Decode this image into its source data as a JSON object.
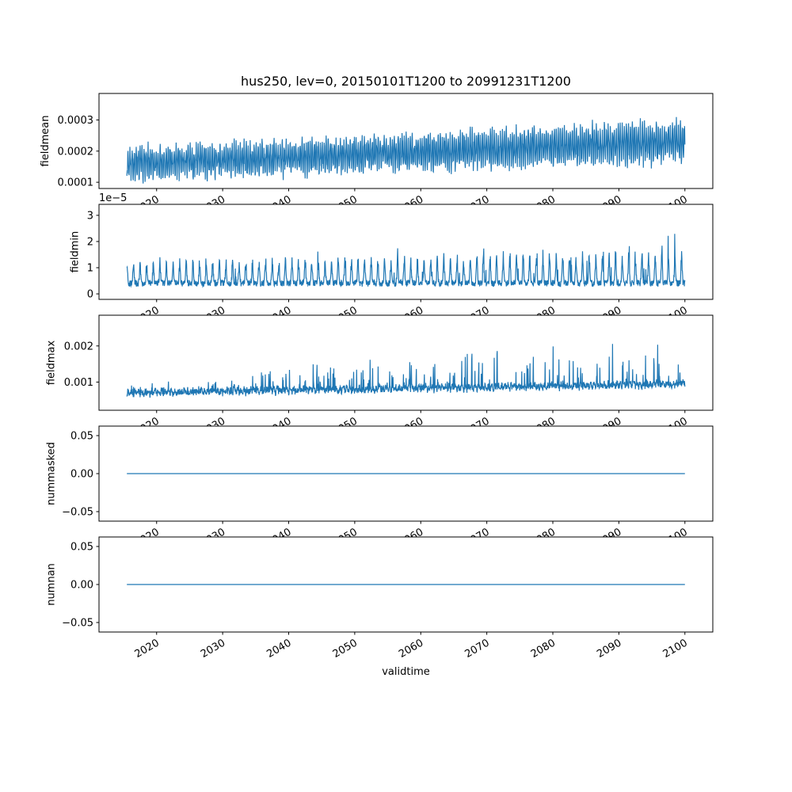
{
  "figure": {
    "background": "#ffffff",
    "line_color": "#1f77b4",
    "axes_color": "#000000",
    "text_color": "#000000"
  },
  "chart_data": {
    "type": "line",
    "title": "hus250, lev=0, 20150101T1200 to 20991231T1200",
    "xlabel": "validtime",
    "grid": false,
    "legend": "none",
    "x_range": [
      2015.5,
      2100
    ],
    "x_ticks": {
      "values": [
        2020,
        2030,
        2040,
        2050,
        2060,
        2070,
        2080,
        2090,
        2100
      ],
      "labels": [
        "2020",
        "2030",
        "2040",
        "2050",
        "2060",
        "2070",
        "2080",
        "2090",
        "2100"
      ]
    },
    "subplots": [
      {
        "ylabel": "fieldmean",
        "ylim": [
          8e-05,
          0.000385
        ],
        "yticks": {
          "values": [
            0.0001,
            0.0002,
            0.0003
          ],
          "labels": [
            "0.0001",
            "0.0002",
            "0.0003"
          ]
        },
        "offset_text": "",
        "series": {
          "kind": "seasonal",
          "seed": 11,
          "points_per_year": 24,
          "base_start": 0.00016,
          "base_end": 0.00023,
          "cycles_per_year": 3.3,
          "amplitude": 5e-05,
          "amplitude_trend": 0.4,
          "noise": 4e-05,
          "approx_min": 0.0001,
          "approx_max": 0.00035
        }
      },
      {
        "ylabel": "fieldmin",
        "ylim": [
          -2.1e-06,
          3.42e-05
        ],
        "yticks": {
          "values": [
            0,
            1e-05,
            2e-05,
            3e-05
          ],
          "labels": [
            "0",
            "1",
            "2",
            "3"
          ]
        },
        "offset_text": "1e−5",
        "series": {
          "kind": "annual-spikes",
          "seed": 22,
          "points_per_year": 24,
          "floor": 2.8e-06,
          "noise": 2.5e-06,
          "amplitude": 9e-06,
          "cycles_per_year": 1,
          "sharpness": 12,
          "trend": 0.5,
          "tall_spike_prob": 0.03,
          "tall_spike_amp": 1.1e-05,
          "approx_min": 1e-06,
          "approx_max": 3.1e-05
        }
      },
      {
        "ylabel": "fieldmax",
        "ylim": [
          0.00022,
          0.00285
        ],
        "yticks": {
          "values": [
            0.001,
            0.002
          ],
          "labels": [
            "0.001",
            "0.002"
          ]
        },
        "offset_text": "",
        "series": {
          "kind": "random-spikes",
          "seed": 33,
          "points_per_year": 24,
          "base_start": 0.00055,
          "base_end": 0.0008,
          "noise": 0.00018,
          "seasonal": 0.00012,
          "spike_prob": 0.1,
          "spike_min": 0.0002,
          "spike_growth": 0.0016,
          "approx_min": 0.0004,
          "approx_max": 0.0026
        }
      },
      {
        "ylabel": "nummasked",
        "ylim": [
          -0.0625,
          0.0625
        ],
        "yticks": {
          "values": [
            -0.05,
            0,
            0.05
          ],
          "labels": [
            "−0.05",
            "0.00",
            "0.05"
          ]
        },
        "offset_text": "",
        "series": {
          "kind": "constant",
          "value": 0,
          "points_per_year": 4
        }
      },
      {
        "ylabel": "numnan",
        "ylim": [
          -0.0625,
          0.0625
        ],
        "yticks": {
          "values": [
            -0.05,
            0,
            0.05
          ],
          "labels": [
            "−0.05",
            "0.00",
            "0.05"
          ]
        },
        "offset_text": "",
        "series": {
          "kind": "constant",
          "value": 0,
          "points_per_year": 4
        }
      }
    ]
  }
}
